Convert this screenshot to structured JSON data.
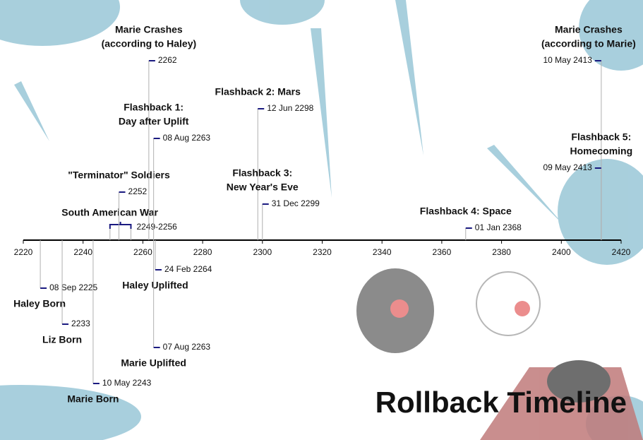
{
  "chart_data": {
    "type": "timeline",
    "title": "Rollback Timeline",
    "xlim": [
      2220,
      2420
    ],
    "xticks": [
      2220,
      2240,
      2260,
      2280,
      2300,
      2320,
      2340,
      2360,
      2380,
      2400,
      2420
    ],
    "marker_color": "#1a1a80",
    "stem_color": "#b0b0b0",
    "events": [
      {
        "title": [
          "Haley Born"
        ],
        "date": "08 Sep 2225",
        "year": 2225.69
      },
      {
        "title": [
          "Liz Born"
        ],
        "date": "2233",
        "year": 2233
      },
      {
        "title": [
          "Marie Born"
        ],
        "date": "10 May 2243",
        "year": 2243.36
      },
      {
        "title": [
          "South American War"
        ],
        "date": "2249-2256",
        "year": 2249,
        "end": 2256
      },
      {
        "title": [
          "\"Terminator\" Soldiers"
        ],
        "date": "2252",
        "year": 2252
      },
      {
        "title": [
          "Marie Crashes",
          "(according to Haley)"
        ],
        "date": "2262",
        "year": 2262
      },
      {
        "title": [
          "Flashback 1:",
          "Day after Uplift"
        ],
        "date": "08 Aug 2263",
        "year": 2263.6
      },
      {
        "title": [
          "Haley Uplifted"
        ],
        "date": "24 Feb 2264",
        "year": 2264.15
      },
      {
        "title": [
          "Marie Uplifted"
        ],
        "date": "07 Aug 2263",
        "year": 2263.6
      },
      {
        "title": [
          "Flashback 2: Mars"
        ],
        "date": "12 Jun 2298",
        "year": 2298.45
      },
      {
        "title": [
          "Flashback 3:",
          "New Year's Eve"
        ],
        "date": "31 Dec 2299",
        "year": 2299.99
      },
      {
        "title": [
          "Flashback 4: Space"
        ],
        "date": "01 Jan 2368",
        "year": 2368
      },
      {
        "title": [
          "Marie Crashes",
          "(according to Marie)"
        ],
        "date": "10 May 2413",
        "year": 2413.36
      },
      {
        "title": [
          "Flashback 5:",
          "Homecoming"
        ],
        "date": "09 May 2413",
        "year": 2413.35
      }
    ]
  }
}
